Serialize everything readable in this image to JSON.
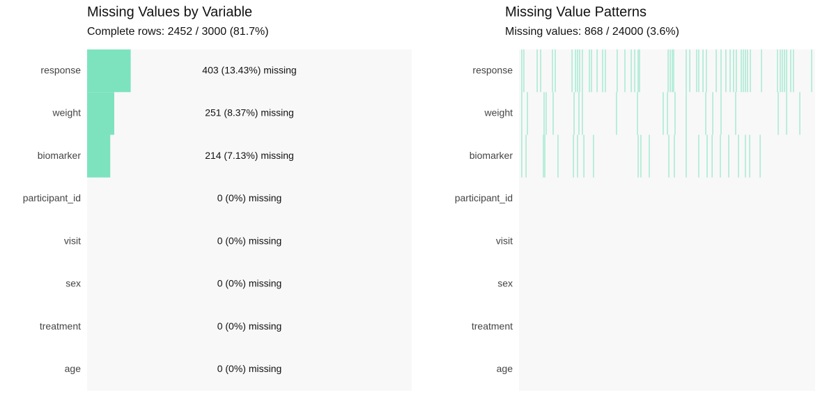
{
  "chart_data": [
    {
      "type": "bar",
      "title": "Missing Values by Variable",
      "subtitle": "Complete rows: 2452 / 3000 (81.7%)",
      "categories": [
        "response",
        "weight",
        "biomarker",
        "participant_id",
        "visit",
        "sex",
        "treatment",
        "age"
      ],
      "values": [
        403,
        251,
        214,
        0,
        0,
        0,
        0,
        0
      ],
      "value_labels": [
        "403 (13.43%) missing",
        "251 (8.37%) missing",
        "214 (7.13%) missing",
        "0 (0%) missing",
        "0 (0%) missing",
        "0 (0%) missing",
        "0 (0%) missing",
        "0 (0%) missing"
      ],
      "color": "#7de3bf",
      "xlim": [
        0,
        3000
      ]
    },
    {
      "type": "missing_pattern",
      "title": "Missing Value Patterns",
      "subtitle": "Missing values: 868 / 24000 (3.6%)",
      "categories": [
        "response",
        "weight",
        "biomarker",
        "participant_id",
        "visit",
        "sex",
        "treatment",
        "age"
      ],
      "missing_rows": [
        [
          28,
          49,
          184,
          219,
          339,
          367,
          537,
          572,
          593,
          614,
          642,
          713,
          734,
          791,
          847,
          875,
          995,
          1073,
          1137,
          1172,
          1207,
          1221,
          1511,
          1532,
          1553,
          1567,
          1694,
          1730,
          1800,
          1821,
          1864,
          1899,
          1998,
          2047,
          2096,
          2139,
          2174,
          2202,
          2252,
          2273,
          2294,
          2315,
          2344,
          2457,
          2619,
          2647,
          2668,
          2690,
          2711,
          2753,
          2781,
          2965
        ],
        [
          28,
          85,
          254,
          275,
          346,
          558,
          607,
          642,
          988,
          1200,
          1461,
          1504,
          1581,
          1694,
          1892,
          1963,
          2047,
          2195,
          2626,
          2711,
          2845
        ],
        [
          28,
          71,
          247,
          261,
          395,
          551,
          593,
          657,
          755,
          1207,
          1235,
          1320,
          1518,
          1574,
          1694,
          1821,
          1906,
          1956,
          2040,
          2125,
          2224,
          2294,
          2337,
          2443
        ],
        [],
        [],
        [],
        [],
        []
      ],
      "color": "#7de3bf",
      "xlim": [
        0,
        3000
      ]
    }
  ]
}
